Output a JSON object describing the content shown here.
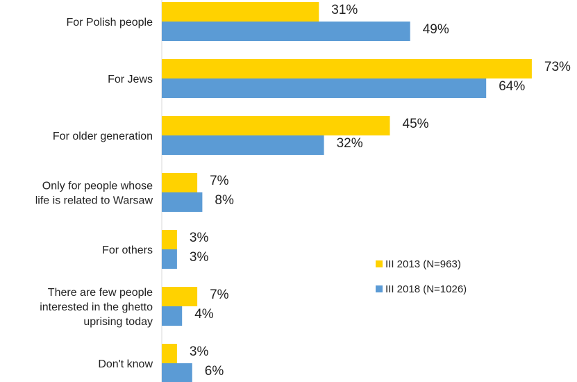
{
  "chart_data": {
    "type": "bar",
    "orientation": "horizontal",
    "categories": [
      [
        "For Polish people"
      ],
      [
        "For Jews"
      ],
      [
        "For older generation"
      ],
      [
        "Only for people whose",
        "life is related to Warsaw"
      ],
      [
        "For others"
      ],
      [
        "There are few people",
        "interested in the ghetto",
        "uprising today"
      ],
      [
        "Don't know"
      ]
    ],
    "series": [
      {
        "name": "III 2013 (N=963)",
        "color": "#FFD200",
        "values": [
          31,
          73,
          45,
          7,
          3,
          7,
          3
        ],
        "labels": [
          "31%",
          "73%",
          "45%",
          "7%",
          "3%",
          "7%",
          "3%"
        ]
      },
      {
        "name": "III 2018 (N=1026)",
        "color": "#5B9BD5",
        "values": [
          49,
          64,
          32,
          8,
          3,
          4,
          6
        ],
        "labels": [
          "49%",
          "64%",
          "32%",
          "8%",
          "3%",
          "4%",
          "6%"
        ]
      }
    ],
    "xlim": [
      0,
      73
    ],
    "legend_position": "right",
    "grid": false
  }
}
